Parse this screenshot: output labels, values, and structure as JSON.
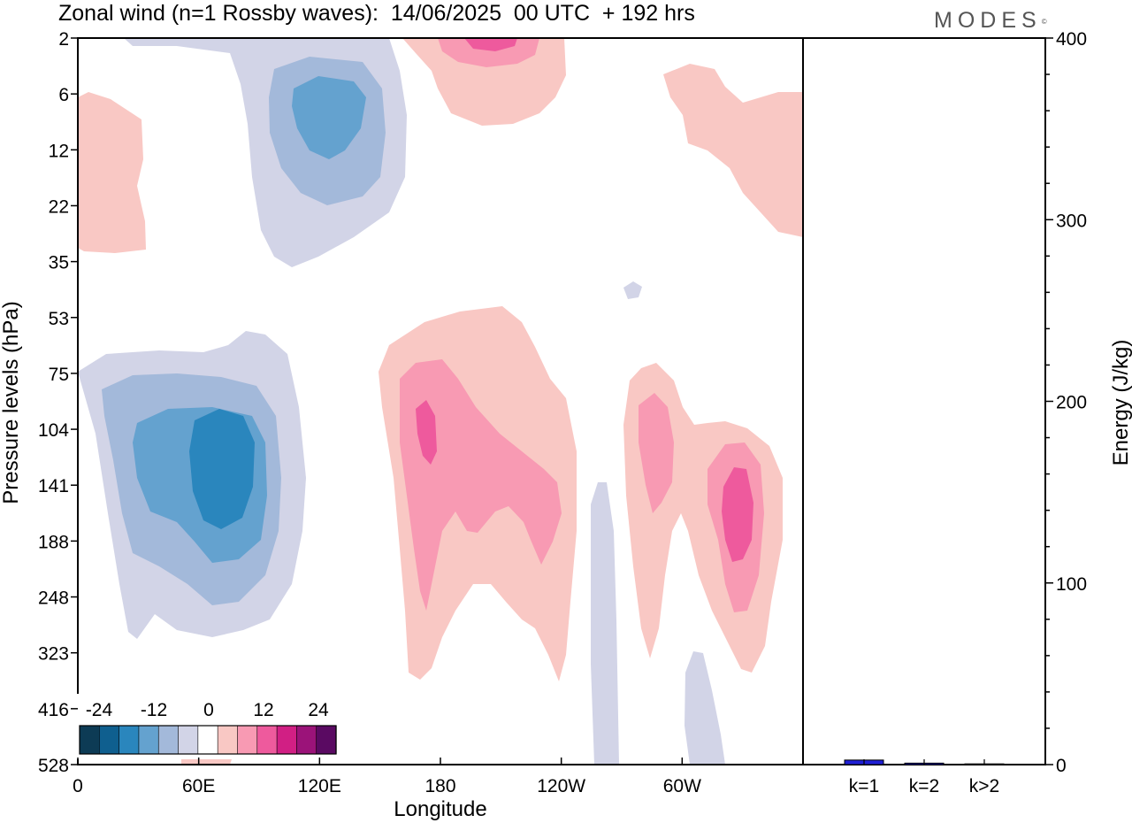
{
  "title": "Zonal wind (n=1 Rossby waves):  14/06/2025  00 UTC  + 192 hrs",
  "logo": "MODES",
  "logo_mark": "©",
  "chart_data": [
    {
      "type": "heatmap",
      "xlabel": "Longitude",
      "ylabel": "Pressure levels (hPa)",
      "x_ticks": [
        "0",
        "60E",
        "120E",
        "180",
        "120W",
        "60W"
      ],
      "y_ticks": [
        "2",
        "6",
        "12",
        "22",
        "35",
        "53",
        "75",
        "104",
        "141",
        "188",
        "248",
        "323",
        "416",
        "528"
      ],
      "y_scale": "log-like (inverted, 528 at bottom)",
      "colorbar": {
        "labels": [
          "-24",
          "-12",
          "0",
          "12",
          "24"
        ],
        "colors": [
          "#0d3b55",
          "#0f5f8f",
          "#2a86bd",
          "#64a2cf",
          "#a3b9da",
          "#d2d4e7",
          "#ffffff",
          "#f9c8c4",
          "#f89ab3",
          "#ee5a9d",
          "#d11f84",
          "#9b1379",
          "#5a0a62"
        ],
        "placement": "bottom-left"
      },
      "features": [
        {
          "name": "easterly upper-left",
          "sign": "negative",
          "lon": "60E",
          "level_range": [
            "2",
            "35"
          ],
          "peak": -12
        },
        {
          "name": "easterly lower-left",
          "sign": "negative",
          "lon": "30E-90E",
          "level_range": [
            "53",
            "323"
          ],
          "peak": -18
        },
        {
          "name": "westerly upper-center",
          "sign": "positive",
          "lon": "160W",
          "level_range": [
            "2",
            "6"
          ],
          "peak": 12
        },
        {
          "name": "westerly center",
          "sign": "positive",
          "lon": "180-120W",
          "level_range": [
            "53",
            "416"
          ],
          "peak": 12
        },
        {
          "name": "westerly right",
          "sign": "positive",
          "lon": "75W-30W",
          "level_range": [
            "75",
            "323"
          ],
          "peak": 12
        },
        {
          "name": "westerly far-left",
          "sign": "positive",
          "lon": "0-20E",
          "level_range": [
            "6",
            "22"
          ],
          "peak": 4
        },
        {
          "name": "westerly far-right",
          "sign": "positive",
          "lon": "60W-0",
          "level_range": [
            "2",
            "22"
          ],
          "peak": 4
        }
      ]
    },
    {
      "type": "bar",
      "ylabel": "Energy (J/kg)",
      "categories": [
        "k=1",
        "k=2",
        "k>2"
      ],
      "values": [
        2.5,
        0.8,
        0.4
      ],
      "ylim": [
        0,
        400
      ],
      "y_ticks": [
        "0",
        "100",
        "200",
        "300",
        "400"
      ],
      "bar_color": "#1f1fd6"
    }
  ]
}
